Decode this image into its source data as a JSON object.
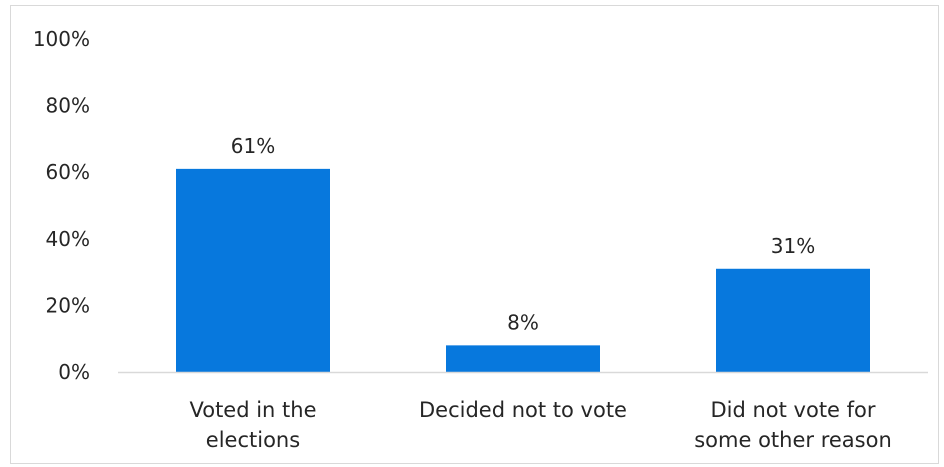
{
  "chart_data": {
    "type": "bar",
    "categories": [
      [
        "Voted in the",
        "elections"
      ],
      [
        "Decided not to vote"
      ],
      [
        "Did not vote for",
        "some other reason"
      ]
    ],
    "values": [
      61,
      8,
      31
    ],
    "data_labels": [
      "61%",
      "8%",
      "31%"
    ],
    "title": "",
    "xlabel": "",
    "ylabel": "",
    "ylim": [
      0,
      100
    ],
    "yticks": [
      0,
      20,
      40,
      60,
      80,
      100
    ],
    "ytick_labels": [
      "0%",
      "20%",
      "40%",
      "60%",
      "80%",
      "100%"
    ],
    "grid": false,
    "legend": "none",
    "bar_color": "#0778DD",
    "axis_color": "#d9d9d9",
    "text_color": "#262626"
  }
}
